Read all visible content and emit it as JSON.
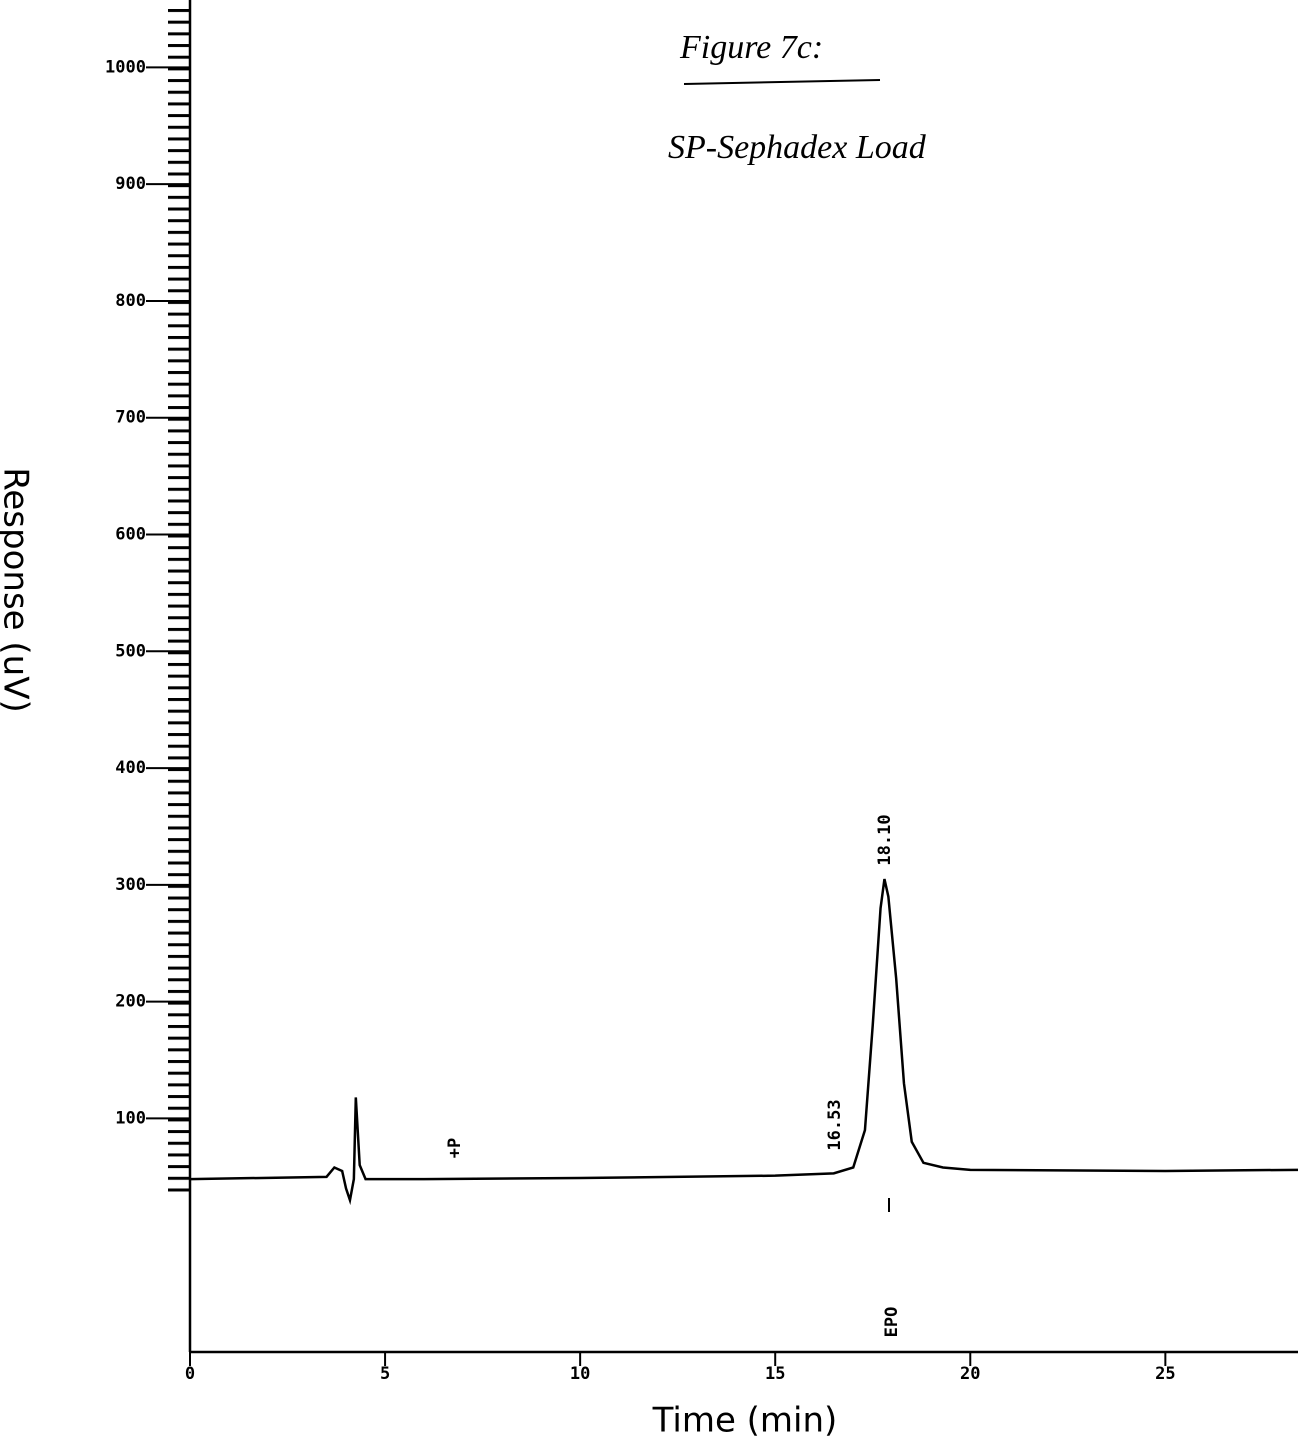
{
  "chart_data": {
    "type": "line",
    "title": "Figure 7c:",
    "subtitle": "SP-Sephadex Load",
    "x_label": "Time (min)",
    "y_label": "Response (uV)",
    "annotations": [
      "18.10",
      "16.53",
      "+P",
      "EPO"
    ],
    "series": [
      {
        "name": "Detector signal",
        "color": "#000000",
        "x": [
          0,
          3.5,
          3.7,
          3.9,
          4.0,
          4.1,
          4.2,
          4.25,
          4.35,
          4.5,
          6,
          10,
          15,
          16.5,
          17.0,
          17.3,
          17.5,
          17.7,
          17.8,
          17.9,
          18.1,
          18.3,
          18.5,
          18.8,
          19.3,
          20,
          25,
          28.4
        ],
        "values": [
          48,
          50,
          58,
          55,
          40,
          30,
          48,
          118,
          60,
          48,
          48,
          49,
          51,
          53,
          58,
          90,
          180,
          280,
          305,
          290,
          220,
          130,
          80,
          62,
          58,
          56,
          55,
          56
        ]
      }
    ],
    "xlim": [
      0,
      28.4
    ],
    "xticks": [
      0,
      5,
      10,
      15,
      20,
      25
    ],
    "ylim": [
      -100,
      1050
    ],
    "yticks": [
      100,
      200,
      300,
      400,
      500,
      600,
      700,
      800,
      900,
      1000
    ]
  }
}
